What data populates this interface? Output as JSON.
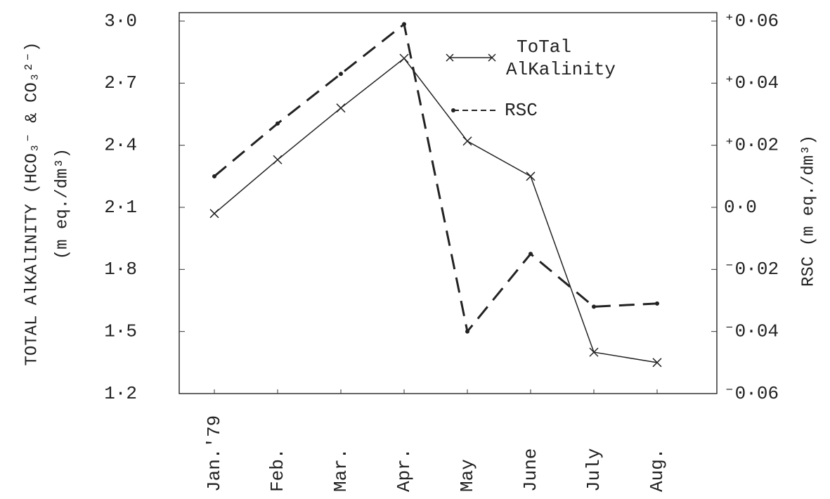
{
  "chart_data": {
    "type": "line",
    "y_label": "TOTAL AlKAlINITY (HCO₃⁻ & CO₃²⁻)",
    "y_label_units": "(m eq./dm³)",
    "y2_label": "RSC (m eq./dm³)",
    "categories": [
      "Jan.'79",
      "Feb.",
      "Mar.",
      "Apr.",
      "May",
      "June",
      "July",
      "Aug."
    ],
    "series": [
      {
        "name": "ToTal AlKalinity",
        "color": "#222222",
        "values": [
          2.07,
          2.33,
          2.58,
          2.82,
          2.42,
          2.25,
          1.4,
          1.35
        ]
      },
      {
        "name": "RSC",
        "color": "#222222",
        "axis": "y2",
        "values": [
          0.01,
          0.027,
          0.043,
          0.059,
          -0.04,
          -0.015,
          -0.032,
          -0.031
        ]
      }
    ],
    "ylim": [
      1.2,
      3.0
    ],
    "yticks": [
      {
        "value": 3.0,
        "label": "3·0"
      },
      {
        "value": 2.7,
        "label": "2·7"
      },
      {
        "value": 2.4,
        "label": "2·4"
      },
      {
        "value": 2.1,
        "label": "2·1"
      },
      {
        "value": 1.8,
        "label": "1·8"
      },
      {
        "value": 1.5,
        "label": "1·5"
      },
      {
        "value": 1.2,
        "label": "1·2"
      }
    ],
    "y2lim": [
      -0.06,
      0.06
    ],
    "y2ticks": [
      {
        "value": 0.06,
        "label": "⁺0·06"
      },
      {
        "value": 0.04,
        "label": "⁺0·04"
      },
      {
        "value": 0.02,
        "label": "⁺0·02"
      },
      {
        "value": 0,
        "label": "0·0"
      },
      {
        "value": -0.02,
        "label": "⁻0·02"
      },
      {
        "value": -0.04,
        "label": "⁻0·04"
      },
      {
        "value": -0.06,
        "label": "⁻0·06"
      }
    ],
    "legend": "upper right"
  }
}
